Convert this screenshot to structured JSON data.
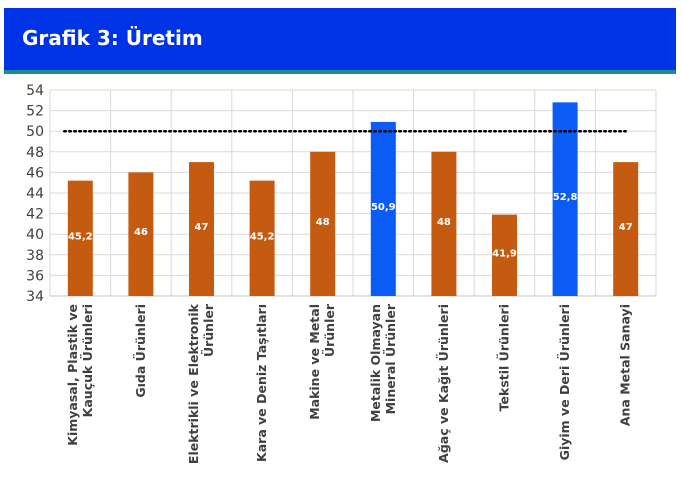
{
  "header": {
    "title": "Grafik 3: Üretim"
  },
  "chart_data": {
    "type": "bar",
    "title": "Grafik 3: Üretim",
    "categories": [
      [
        "Kimyasal, Plastik ve",
        "Kauçuk Ürünleri"
      ],
      [
        "Gıda Ürünleri"
      ],
      [
        "Elektrikli ve Elektronik",
        "Ürünler"
      ],
      [
        "Kara ve Deniz Taşıtları"
      ],
      [
        "Makine ve Metal",
        "Ürünler"
      ],
      [
        "Metalik Olmayan",
        "Mineral Ürünler"
      ],
      [
        "Ağaç ve Kağıt Ürünleri"
      ],
      [
        "Tekstil Ürünleri"
      ],
      [
        "Giyim ve Deri Ürünleri"
      ],
      [
        "Ana Metal Sanayi"
      ]
    ],
    "values": [
      45.2,
      46,
      47,
      45.2,
      48,
      50.9,
      48,
      41.9,
      52.8,
      47
    ],
    "data_labels": [
      "45,2",
      "46",
      "47",
      "45,2",
      "48",
      "50,9",
      "48",
      "41,9",
      "52,8",
      "47"
    ],
    "threshold": 50,
    "threshold_style": "dotted",
    "ylim": [
      34,
      54
    ],
    "yticks": [
      34,
      36,
      38,
      40,
      42,
      44,
      46,
      48,
      50,
      52,
      54
    ],
    "grid": true,
    "colors": {
      "below_threshold": "#c55a11",
      "above_threshold": "#0a5cf5",
      "threshold_line": "#000000",
      "grid": "#d9d9d9"
    }
  }
}
